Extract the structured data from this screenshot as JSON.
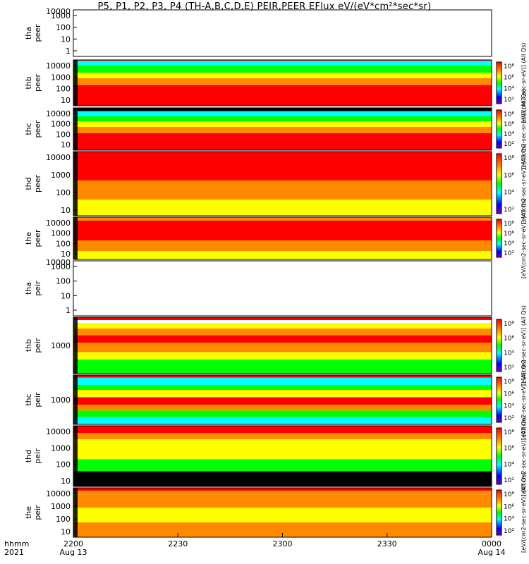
{
  "title": "P5, P1, P2, P3, P4 (TH-A,B,C,D,E) PEIR,PEER EFlux eV/(eV*cm²*sec*sr)",
  "time_axis": {
    "row_label_1": "hhmm",
    "row_label_2": "2021",
    "ticks": [
      {
        "label": "2200",
        "sub": "Aug 13"
      },
      {
        "label": "2230",
        "sub": ""
      },
      {
        "label": "2300",
        "sub": ""
      },
      {
        "label": "2330",
        "sub": ""
      },
      {
        "label": "0000",
        "sub": "Aug 14"
      }
    ]
  },
  "colorbar_ticks": [
    "10⁸",
    "10⁶",
    "10⁴",
    "10²"
  ],
  "colorbar_label_all": "[eV/(cm2-sec-sr-eV)] (All Qs)",
  "colors": {
    "red": "#ff0000",
    "orange": "#ff8a00",
    "yellow": "#ffff00",
    "green": "#00ff00",
    "cyan": "#00ffff",
    "blue": "#0000ff",
    "purple": "#7a00b4",
    "black": "#000000"
  },
  "chart_data": {
    "type": "heatmap",
    "x_range": [
      "2021-08-13 22:00",
      "2021-08-14 00:00"
    ],
    "y_scale": "log",
    "panels": [
      {
        "probe": "tha",
        "kind": "peer",
        "ylabel": [
          "tha",
          "peer"
        ],
        "yticks": [
          "1000",
          "100",
          "10",
          "1"
        ],
        "top_tick": "10000",
        "data": false
      },
      {
        "probe": "thb",
        "kind": "peer",
        "ylabel": [
          "thb",
          "peer"
        ],
        "yticks": [
          "10000",
          "1000",
          "100",
          "10"
        ],
        "data": true
      },
      {
        "probe": "thc",
        "kind": "peer",
        "ylabel": [
          "thc",
          "peer"
        ],
        "yticks": [
          "10000",
          "1000",
          "100",
          "10"
        ],
        "data": true
      },
      {
        "probe": "thd",
        "kind": "peer",
        "ylabel": [
          "thd",
          "peer"
        ],
        "yticks": [
          "10000",
          "1000",
          "100",
          "10"
        ],
        "data": true
      },
      {
        "probe": "the",
        "kind": "peer",
        "ylabel": [
          "the",
          "peer"
        ],
        "yticks": [
          "10000",
          "1000",
          "100",
          "10"
        ],
        "data": true
      },
      {
        "probe": "tha",
        "kind": "peir",
        "ylabel": [
          "tha",
          "peir"
        ],
        "yticks": [
          "1000",
          "100",
          "10",
          "1"
        ],
        "top_tick": "10000",
        "data": false
      },
      {
        "probe": "thb",
        "kind": "peir",
        "ylabel": [
          "thb",
          "peir"
        ],
        "yticks": [
          "1000"
        ],
        "data": true
      },
      {
        "probe": "thc",
        "kind": "peir",
        "ylabel": [
          "thc",
          "peir"
        ],
        "yticks": [
          "1000"
        ],
        "data": true
      },
      {
        "probe": "thd",
        "kind": "peir",
        "ylabel": [
          "thd",
          "peir"
        ],
        "yticks": [
          "10000",
          "1000",
          "100",
          "10"
        ],
        "data": true
      },
      {
        "probe": "the",
        "kind": "peir",
        "ylabel": [
          "the",
          "peir"
        ],
        "yticks": [
          "10000",
          "1000",
          "100",
          "10"
        ],
        "data": true
      }
    ],
    "colorbar": {
      "scale": "log",
      "tick_labels": [
        "10⁸",
        "10⁶",
        "10⁴",
        "10²"
      ],
      "units": "[eV/(cm2-sec-sr-eV)]"
    }
  }
}
